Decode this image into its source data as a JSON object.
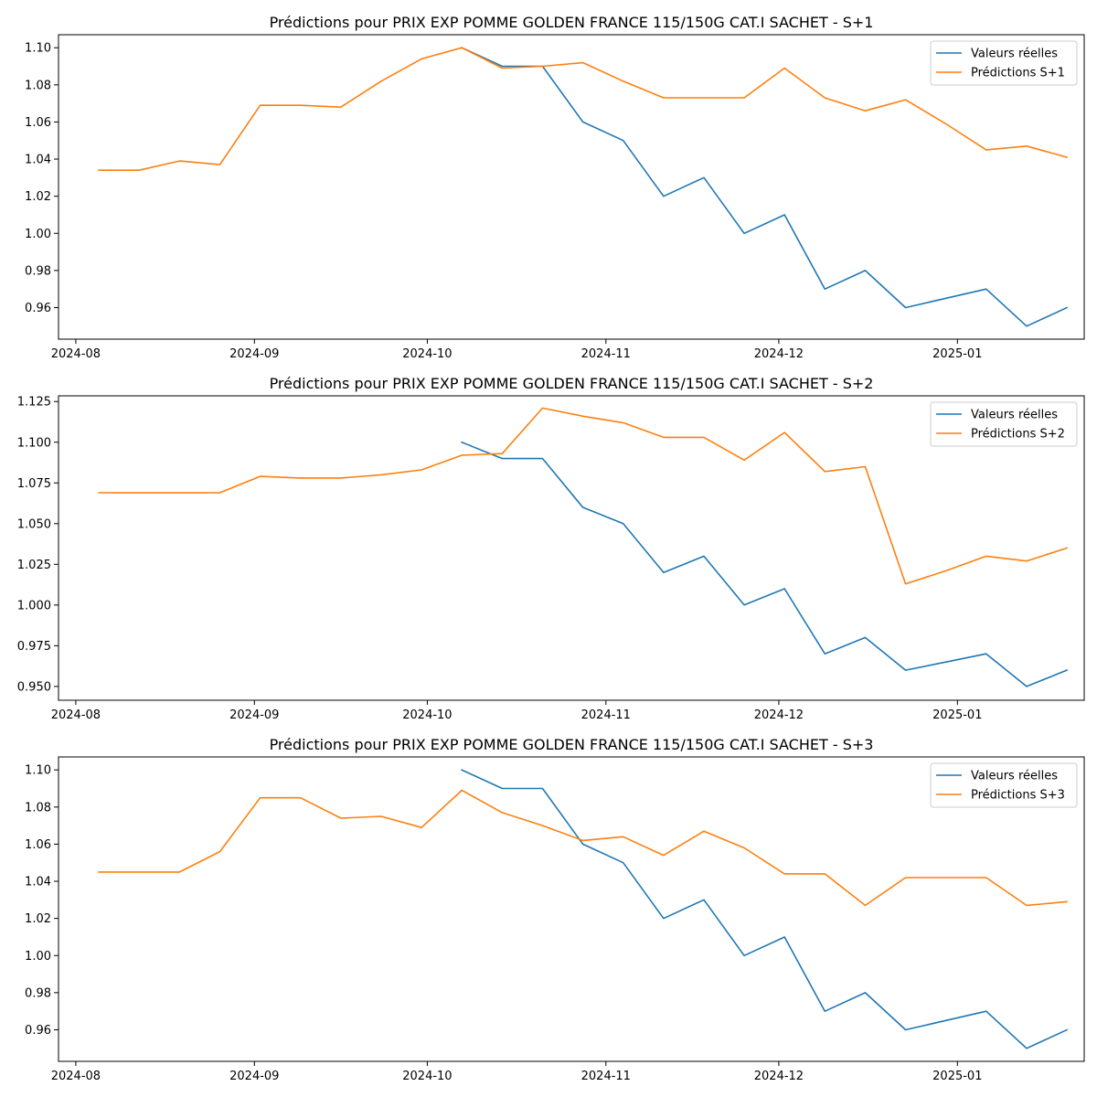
{
  "chart_data": [
    {
      "type": "line",
      "title": "Prédictions pour PRIX EXP POMME GOLDEN FRANCE 115/150G CAT.I SACHET - S+1",
      "xlabel": "",
      "ylabel": "",
      "x_ticks": [
        "2024-08",
        "2024-09",
        "2024-10",
        "2024-11",
        "2024-12",
        "2025-01"
      ],
      "y_ticks": [
        "0.96",
        "0.98",
        "1.00",
        "1.02",
        "1.04",
        "1.06",
        "1.08",
        "1.10"
      ],
      "ylim": [
        0.943,
        1.107
      ],
      "xlim": [
        "2024-07-29",
        "2025-01-23"
      ],
      "grid": false,
      "legend": "top-right",
      "series": [
        {
          "name": "Valeurs réelles",
          "color": "#1f77b4",
          "x": [
            "2024-10-07",
            "2024-10-14",
            "2024-10-21",
            "2024-10-28",
            "2024-11-04",
            "2024-11-11",
            "2024-11-18",
            "2024-11-25",
            "2024-12-02",
            "2024-12-09",
            "2024-12-16",
            "2024-12-23",
            "2024-12-30",
            "2025-01-06",
            "2025-01-13",
            "2025-01-20"
          ],
          "values": [
            1.1,
            1.09,
            1.09,
            1.06,
            1.05,
            1.02,
            1.03,
            1.0,
            1.01,
            0.97,
            0.98,
            0.96,
            0.965,
            0.97,
            0.95,
            0.96
          ]
        },
        {
          "name": "Prédictions S+1",
          "color": "#ff7f0e",
          "x": [
            "2024-08-05",
            "2024-08-12",
            "2024-08-19",
            "2024-08-26",
            "2024-09-02",
            "2024-09-09",
            "2024-09-16",
            "2024-09-23",
            "2024-09-30",
            "2024-10-07",
            "2024-10-14",
            "2024-10-21",
            "2024-10-28",
            "2024-11-04",
            "2024-11-11",
            "2024-11-18",
            "2024-11-25",
            "2024-12-02",
            "2024-12-09",
            "2024-12-16",
            "2024-12-23",
            "2024-12-30",
            "2025-01-06",
            "2025-01-13",
            "2025-01-20"
          ],
          "values": [
            1.034,
            1.034,
            1.039,
            1.037,
            1.069,
            1.069,
            1.068,
            1.082,
            1.094,
            1.1,
            1.089,
            1.09,
            1.092,
            1.082,
            1.073,
            1.073,
            1.073,
            1.089,
            1.073,
            1.066,
            1.072,
            1.059,
            1.045,
            1.047,
            1.041
          ]
        }
      ]
    },
    {
      "type": "line",
      "title": "Prédictions pour PRIX EXP POMME GOLDEN FRANCE 115/150G CAT.I SACHET - S+2",
      "xlabel": "",
      "ylabel": "",
      "x_ticks": [
        "2024-08",
        "2024-09",
        "2024-10",
        "2024-11",
        "2024-12",
        "2025-01"
      ],
      "y_ticks": [
        "0.950",
        "0.975",
        "1.000",
        "1.025",
        "1.050",
        "1.075",
        "1.100",
        "1.125"
      ],
      "ylim": [
        0.9415,
        1.1285
      ],
      "xlim": [
        "2024-07-29",
        "2025-01-23"
      ],
      "grid": false,
      "legend": "top-right",
      "series": [
        {
          "name": "Valeurs réelles",
          "color": "#1f77b4",
          "x": [
            "2024-10-07",
            "2024-10-14",
            "2024-10-21",
            "2024-10-28",
            "2024-11-04",
            "2024-11-11",
            "2024-11-18",
            "2024-11-25",
            "2024-12-02",
            "2024-12-09",
            "2024-12-16",
            "2024-12-23",
            "2024-12-30",
            "2025-01-06",
            "2025-01-13",
            "2025-01-20"
          ],
          "values": [
            1.1,
            1.09,
            1.09,
            1.06,
            1.05,
            1.02,
            1.03,
            1.0,
            1.01,
            0.97,
            0.98,
            0.96,
            0.965,
            0.97,
            0.95,
            0.96
          ]
        },
        {
          "name": "Prédictions S+2",
          "color": "#ff7f0e",
          "x": [
            "2024-08-05",
            "2024-08-12",
            "2024-08-19",
            "2024-08-26",
            "2024-09-02",
            "2024-09-09",
            "2024-09-16",
            "2024-09-23",
            "2024-09-30",
            "2024-10-07",
            "2024-10-14",
            "2024-10-21",
            "2024-10-28",
            "2024-11-04",
            "2024-11-11",
            "2024-11-18",
            "2024-11-25",
            "2024-12-02",
            "2024-12-09",
            "2024-12-16",
            "2024-12-23",
            "2024-12-30",
            "2025-01-06",
            "2025-01-13",
            "2025-01-20"
          ],
          "values": [
            1.069,
            1.069,
            1.069,
            1.069,
            1.079,
            1.078,
            1.078,
            1.08,
            1.083,
            1.092,
            1.093,
            1.121,
            1.116,
            1.112,
            1.103,
            1.103,
            1.089,
            1.106,
            1.082,
            1.085,
            1.013,
            1.021,
            1.03,
            1.027,
            1.035
          ]
        }
      ]
    },
    {
      "type": "line",
      "title": "Prédictions pour PRIX EXP POMME GOLDEN FRANCE 115/150G CAT.I SACHET - S+3",
      "xlabel": "",
      "ylabel": "",
      "x_ticks": [
        "2024-08",
        "2024-09",
        "2024-10",
        "2024-11",
        "2024-12",
        "2025-01"
      ],
      "y_ticks": [
        "0.96",
        "0.98",
        "1.00",
        "1.02",
        "1.04",
        "1.06",
        "1.08",
        "1.10"
      ],
      "ylim": [
        0.943,
        1.107
      ],
      "xlim": [
        "2024-07-29",
        "2025-01-23"
      ],
      "grid": false,
      "legend": "top-right",
      "series": [
        {
          "name": "Valeurs réelles",
          "color": "#1f77b4",
          "x": [
            "2024-10-07",
            "2024-10-14",
            "2024-10-21",
            "2024-10-28",
            "2024-11-04",
            "2024-11-11",
            "2024-11-18",
            "2024-11-25",
            "2024-12-02",
            "2024-12-09",
            "2024-12-16",
            "2024-12-23",
            "2024-12-30",
            "2025-01-06",
            "2025-01-13",
            "2025-01-20"
          ],
          "values": [
            1.1,
            1.09,
            1.09,
            1.06,
            1.05,
            1.02,
            1.03,
            1.0,
            1.01,
            0.97,
            0.98,
            0.96,
            0.965,
            0.97,
            0.95,
            0.96
          ]
        },
        {
          "name": "Prédictions S+3",
          "color": "#ff7f0e",
          "x": [
            "2024-08-05",
            "2024-08-12",
            "2024-08-19",
            "2024-08-26",
            "2024-09-02",
            "2024-09-09",
            "2024-09-16",
            "2024-09-23",
            "2024-09-30",
            "2024-10-07",
            "2024-10-14",
            "2024-10-21",
            "2024-10-28",
            "2024-11-04",
            "2024-11-11",
            "2024-11-18",
            "2024-11-25",
            "2024-12-02",
            "2024-12-09",
            "2024-12-16",
            "2024-12-23",
            "2024-12-30",
            "2025-01-06",
            "2025-01-13",
            "2025-01-20"
          ],
          "values": [
            1.045,
            1.045,
            1.045,
            1.056,
            1.085,
            1.085,
            1.074,
            1.075,
            1.069,
            1.089,
            1.077,
            1.07,
            1.062,
            1.064,
            1.054,
            1.067,
            1.058,
            1.044,
            1.044,
            1.027,
            1.042,
            1.042,
            1.042,
            1.027,
            1.029
          ]
        }
      ]
    }
  ]
}
